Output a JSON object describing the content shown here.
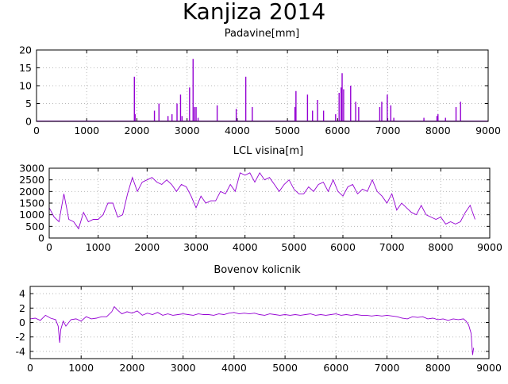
{
  "figure_title": "Kanjiza 2014",
  "colors": {
    "series": "#9400d3",
    "grid": "#b8b8b8",
    "frame": "#000000"
  },
  "chart_data": [
    {
      "type": "line",
      "title": "Padavine[mm]",
      "xlabel": "",
      "ylabel": "",
      "xlim": [
        0,
        9000
      ],
      "ylim": [
        0,
        20
      ],
      "xticks": [
        0,
        1000,
        2000,
        3000,
        4000,
        5000,
        6000,
        7000,
        8000,
        9000
      ],
      "yticks": [
        0,
        5,
        10,
        15,
        20
      ],
      "grid": true,
      "series": [
        {
          "x": [
            1950,
            1965,
            2350,
            2440,
            2620,
            2700,
            2800,
            2870,
            2900,
            3050,
            3120,
            3150,
            3180,
            3220,
            3600,
            3980,
            4170,
            4300,
            5150,
            5170,
            5400,
            5500,
            5600,
            5720,
            5960,
            6030,
            6070,
            6090,
            6120,
            6260,
            6360,
            6420,
            6840,
            6880,
            6990,
            7060,
            7120,
            7720,
            7980,
            8000,
            8150,
            8360,
            8450
          ],
          "y": [
            12.5,
            2,
            3,
            5,
            1.5,
            2,
            5,
            7.5,
            1.5,
            9.5,
            17.5,
            4,
            4,
            1,
            4.5,
            3.5,
            12.5,
            4,
            4,
            8.5,
            7.5,
            3,
            6,
            3,
            2,
            8,
            9.5,
            13.5,
            9,
            10,
            5.5,
            4,
            4,
            5.5,
            7.5,
            4.5,
            1,
            1,
            1.5,
            2,
            1,
            4,
            5.5
          ]
        }
      ]
    },
    {
      "type": "line",
      "title": "LCL visina[m]",
      "xlabel": "",
      "ylabel": "",
      "xlim": [
        0,
        9000
      ],
      "ylim": [
        0,
        3000
      ],
      "xticks": [
        0,
        1000,
        2000,
        3000,
        4000,
        5000,
        6000,
        7000,
        8000,
        9000
      ],
      "yticks": [
        0,
        500,
        1000,
        1500,
        2000,
        2500,
        3000
      ],
      "grid": true,
      "series": [
        {
          "x": [
            0,
            100,
            200,
            300,
            400,
            500,
            600,
            700,
            800,
            900,
            1000,
            1100,
            1200,
            1300,
            1400,
            1500,
            1600,
            1700,
            1800,
            1900,
            2000,
            2100,
            2200,
            2300,
            2400,
            2500,
            2600,
            2700,
            2800,
            2900,
            3000,
            3100,
            3200,
            3300,
            3400,
            3500,
            3600,
            3700,
            3800,
            3900,
            4000,
            4100,
            4200,
            4300,
            4400,
            4500,
            4600,
            4700,
            4800,
            4900,
            5000,
            5100,
            5200,
            5300,
            5400,
            5500,
            5600,
            5700,
            5800,
            5900,
            6000,
            6100,
            6200,
            6300,
            6400,
            6500,
            6600,
            6700,
            6800,
            6900,
            7000,
            7100,
            7200,
            7300,
            7400,
            7500,
            7600,
            7700,
            7800,
            7900,
            8000,
            8100,
            8200,
            8300,
            8400,
            8500,
            8600,
            8700
          ],
          "y": [
            1300,
            900,
            700,
            1900,
            800,
            700,
            400,
            1100,
            700,
            800,
            800,
            1000,
            1500,
            1500,
            900,
            1000,
            1900,
            2600,
            2000,
            2400,
            2500,
            2600,
            2400,
            2300,
            2500,
            2300,
            2000,
            2300,
            2200,
            1800,
            1300,
            1800,
            1500,
            1600,
            1600,
            2000,
            1900,
            2300,
            2000,
            2800,
            2700,
            2800,
            2400,
            2800,
            2500,
            2600,
            2300,
            2000,
            2300,
            2500,
            2100,
            1900,
            1900,
            2200,
            2000,
            2300,
            2400,
            2000,
            2500,
            2000,
            1800,
            2200,
            2300,
            1900,
            2100,
            2000,
            2500,
            2000,
            1800,
            1500,
            1900,
            1200,
            1500,
            1300,
            1100,
            1000,
            1400,
            1000,
            900,
            800,
            900,
            600,
            700,
            600,
            700,
            1100,
            1400,
            800
          ]
        }
      ]
    },
    {
      "type": "line",
      "title": "Bovenov kolicnik",
      "xlabel": "",
      "ylabel": "",
      "xlim": [
        0,
        9000
      ],
      "ylim": [
        -5,
        5
      ],
      "xticks": [
        0,
        1000,
        2000,
        3000,
        4000,
        5000,
        6000,
        7000,
        8000,
        9000
      ],
      "yticks": [
        -4,
        -2,
        0,
        2,
        4
      ],
      "grid": true,
      "series": [
        {
          "x": [
            0,
            100,
            200,
            300,
            400,
            500,
            550,
            580,
            600,
            650,
            700,
            800,
            900,
            1000,
            1100,
            1200,
            1300,
            1400,
            1500,
            1600,
            1650,
            1700,
            1800,
            1900,
            2000,
            2100,
            2200,
            2300,
            2400,
            2500,
            2600,
            2700,
            2800,
            2900,
            3000,
            3100,
            3200,
            3300,
            3400,
            3500,
            3600,
            3700,
            3800,
            3900,
            4000,
            4100,
            4200,
            4300,
            4400,
            4500,
            4600,
            4700,
            4800,
            4900,
            5000,
            5100,
            5200,
            5300,
            5400,
            5500,
            5600,
            5700,
            5800,
            5900,
            6000,
            6100,
            6200,
            6300,
            6400,
            6500,
            6600,
            6700,
            6800,
            6900,
            7000,
            7100,
            7200,
            7300,
            7400,
            7500,
            7600,
            7700,
            7800,
            7900,
            8000,
            8100,
            8200,
            8300,
            8400,
            8500,
            8550,
            8600,
            8650,
            8680,
            8700
          ],
          "y": [
            0.5,
            0.6,
            0.3,
            1,
            0.6,
            0.4,
            -0.5,
            -2.8,
            -1,
            0.2,
            -0.5,
            0.4,
            0.5,
            0.2,
            0.8,
            0.5,
            0.6,
            0.8,
            0.8,
            1.5,
            2.2,
            1.8,
            1.2,
            1.5,
            1.3,
            1.6,
            1.0,
            1.3,
            1.1,
            1.4,
            1.0,
            1.2,
            1.0,
            1.1,
            1.2,
            1.1,
            1.0,
            1.2,
            1.1,
            1.1,
            1.0,
            1.2,
            1.1,
            1.3,
            1.4,
            1.2,
            1.3,
            1.2,
            1.3,
            1.1,
            1.0,
            1.2,
            1.1,
            1.0,
            1.1,
            1.0,
            1.1,
            1.0,
            1.1,
            1.2,
            1.0,
            1.1,
            1.0,
            1.1,
            1.2,
            1.0,
            1.1,
            1.0,
            1.1,
            1.0,
            1.0,
            0.9,
            1.0,
            0.9,
            1.0,
            0.9,
            0.8,
            0.6,
            0.5,
            0.8,
            0.7,
            0.8,
            0.5,
            0.6,
            0.4,
            0.5,
            0.3,
            0.5,
            0.4,
            0.5,
            0.2,
            -0.3,
            -1.5,
            -4.5,
            -3.5
          ]
        }
      ]
    }
  ]
}
